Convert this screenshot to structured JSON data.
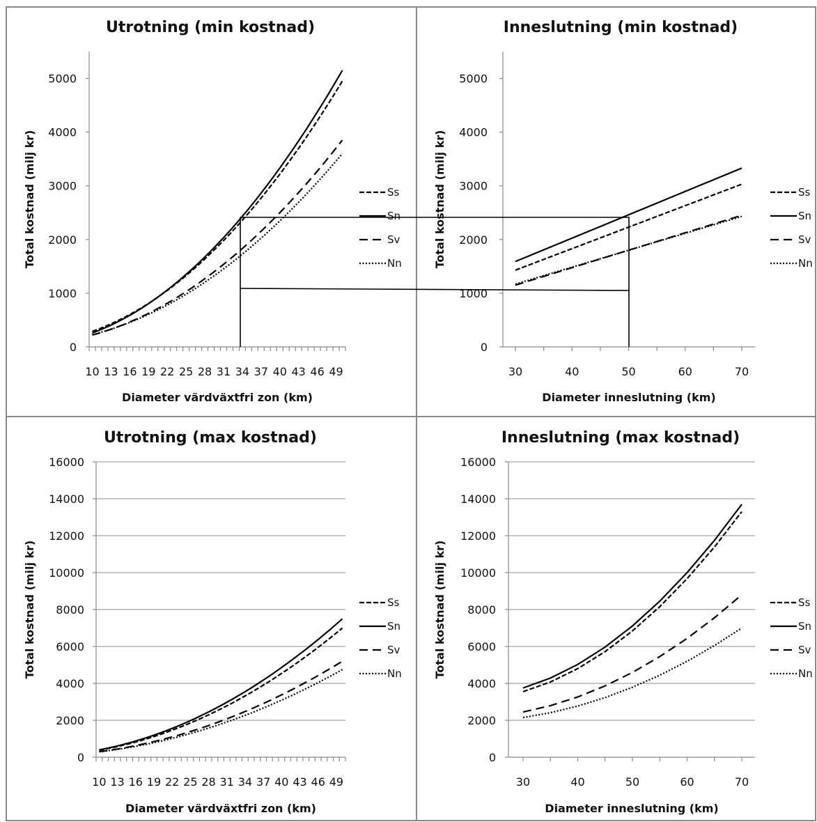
{
  "chart_data": [
    {
      "type": "line",
      "title": "Utrotning (min kostnad)",
      "xlabel": "Diameter värdväxtfri zon (km)",
      "ylabel": "Total kostnad (milj kr)",
      "x": [
        10,
        11,
        12,
        13,
        14,
        15,
        16,
        17,
        18,
        19,
        20,
        21,
        22,
        23,
        24,
        25,
        26,
        27,
        28,
        29,
        30,
        31,
        32,
        33,
        34,
        35,
        36,
        37,
        38,
        39,
        40,
        41,
        42,
        43,
        44,
        45,
        46,
        47,
        48,
        49,
        50
      ],
      "xticks": [
        10,
        13,
        16,
        19,
        22,
        25,
        28,
        31,
        34,
        37,
        40,
        43,
        46,
        49
      ],
      "ylim": [
        0,
        5500
      ],
      "yticks": [
        0,
        1000,
        2000,
        3000,
        4000,
        5000
      ],
      "grid": false,
      "legend_position": "right",
      "series": [
        {
          "name": "Ss",
          "start": 290,
          "end": 4950
        },
        {
          "name": "Sn",
          "start": 260,
          "end": 5150
        },
        {
          "name": "Sv",
          "start": 220,
          "end": 3850
        },
        {
          "name": "Nn",
          "start": 230,
          "end": 3600
        }
      ]
    },
    {
      "type": "line",
      "title": "Inneslutning (min kostnad)",
      "xlabel": "Diameter inneslutning (km)",
      "ylabel": "Total kostnad (milj kr)",
      "x": [
        30,
        70
      ],
      "xticks": [
        30,
        40,
        50,
        60,
        70
      ],
      "ylim": [
        0,
        5500
      ],
      "yticks": [
        0,
        1000,
        2000,
        3000,
        4000,
        5000
      ],
      "grid": false,
      "legend_position": "right",
      "series": [
        {
          "name": "Ss",
          "values": [
            1430,
            3030
          ]
        },
        {
          "name": "Sn",
          "values": [
            1590,
            3330
          ]
        },
        {
          "name": "Sv",
          "values": [
            1150,
            2450
          ]
        },
        {
          "name": "Nn",
          "values": [
            1170,
            2430
          ]
        }
      ]
    },
    {
      "type": "line",
      "title": "Utrotning (max kostnad)",
      "xlabel": "Diameter värdväxtfri zon (km)",
      "ylabel": "Total kostnad (milj kr)",
      "x": [
        10,
        11,
        12,
        13,
        14,
        15,
        16,
        17,
        18,
        19,
        20,
        21,
        22,
        23,
        24,
        25,
        26,
        27,
        28,
        29,
        30,
        31,
        32,
        33,
        34,
        35,
        36,
        37,
        38,
        39,
        40,
        41,
        42,
        43,
        44,
        45,
        46,
        47,
        48,
        49,
        50
      ],
      "xticks": [
        10,
        13,
        16,
        19,
        22,
        25,
        28,
        31,
        34,
        37,
        40,
        43,
        46,
        49
      ],
      "ylim": [
        0,
        16000
      ],
      "yticks": [
        0,
        2000,
        4000,
        6000,
        8000,
        10000,
        12000,
        14000,
        16000
      ],
      "grid": true,
      "legend_position": "right",
      "series": [
        {
          "name": "Ss",
          "start": 380,
          "end": 7000
        },
        {
          "name": "Sn",
          "start": 400,
          "end": 7500
        },
        {
          "name": "Sv",
          "start": 300,
          "end": 5200
        },
        {
          "name": "Nn",
          "start": 290,
          "end": 4750
        }
      ]
    },
    {
      "type": "line",
      "title": "Inneslutning (max kostnad)",
      "xlabel": "Diameter inneslutning (km)",
      "ylabel": "Total kostnad (milj kr)",
      "x": [
        30,
        35,
        40,
        45,
        50,
        55,
        60,
        65,
        70
      ],
      "xticks": [
        30,
        40,
        50,
        60,
        70
      ],
      "ylim": [
        0,
        16000
      ],
      "yticks": [
        0,
        2000,
        4000,
        6000,
        8000,
        10000,
        12000,
        14000,
        16000
      ],
      "grid": true,
      "legend_position": "right",
      "series": [
        {
          "name": "Ss",
          "start": 3550,
          "end": 13300
        },
        {
          "name": "Sn",
          "start": 3750,
          "end": 13700
        },
        {
          "name": "Sv",
          "start": 2450,
          "end": 8800
        },
        {
          "name": "Nn",
          "start": 2150,
          "end": 7000
        }
      ]
    }
  ],
  "styles": {
    "Ss": "short-dash",
    "Sn": "solid",
    "Sv": "long-dash",
    "Nn": "dotted",
    "line_color": "#000000",
    "grid_color": "#8c8c8c",
    "border_color": "#8a8a8a"
  }
}
